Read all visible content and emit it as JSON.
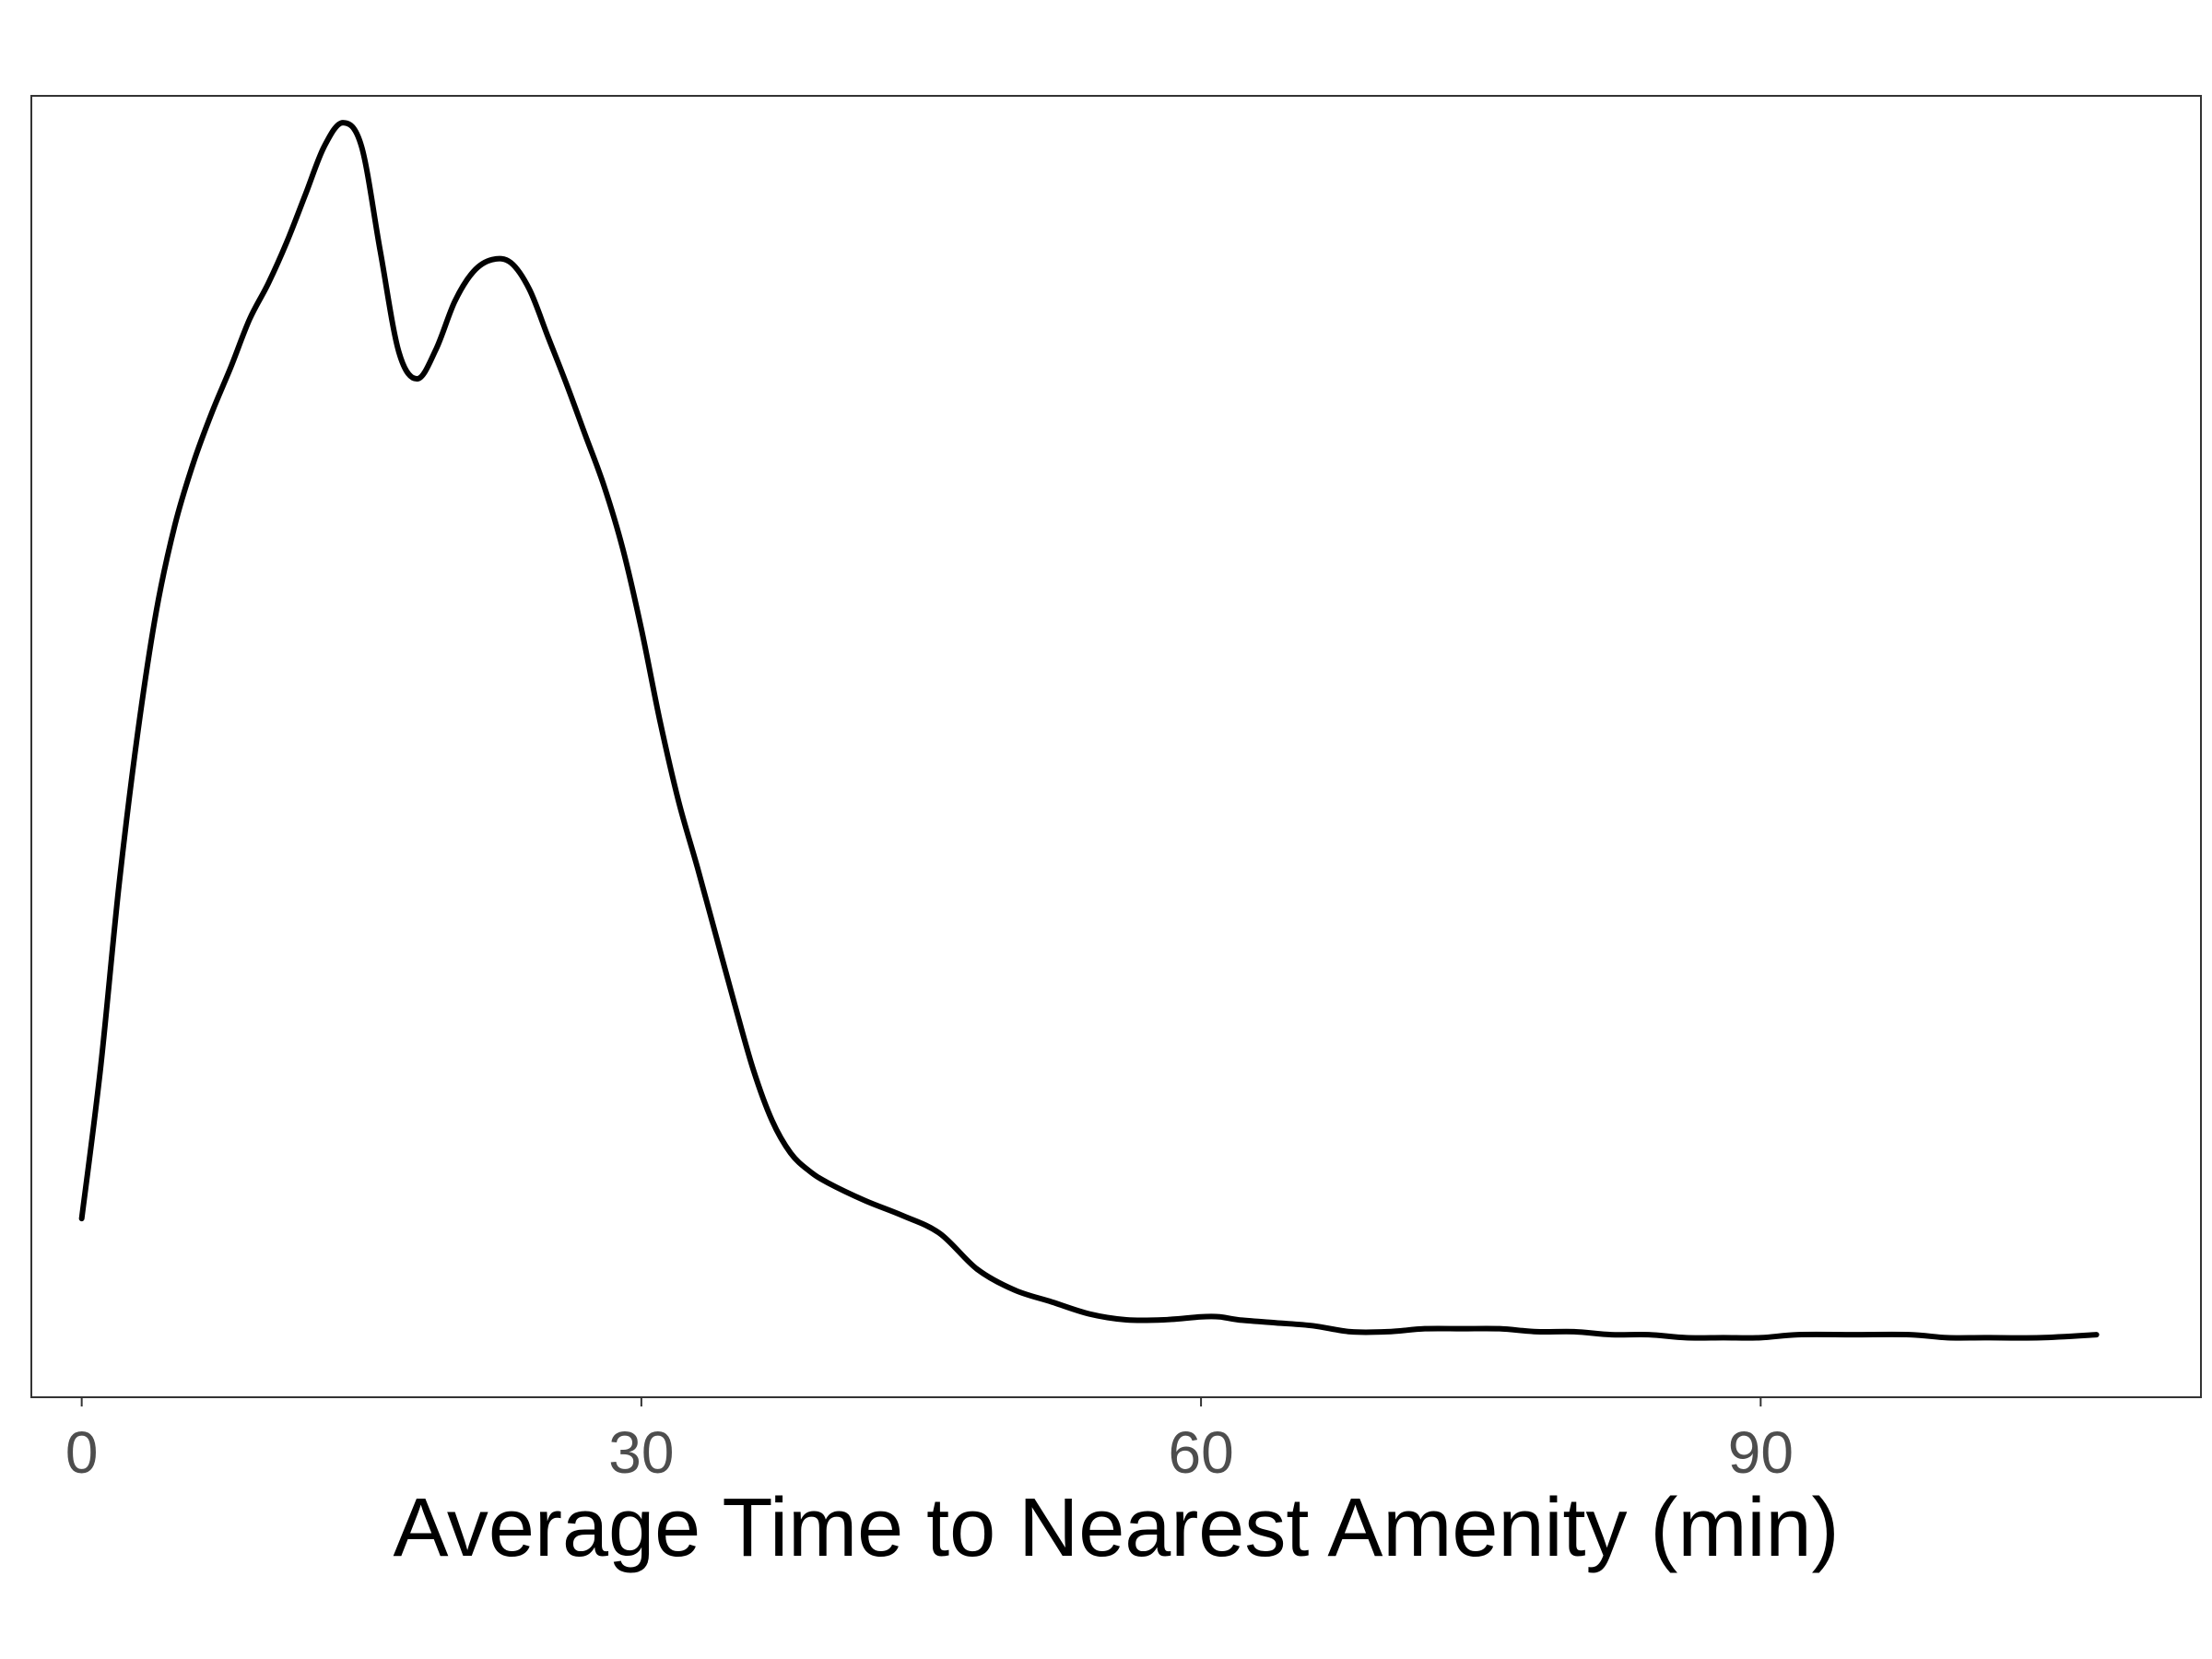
{
  "chart_data": {
    "type": "line",
    "title": "",
    "xlabel": "Average Time to Nearest Amenity (min)",
    "ylabel": "",
    "xlim": [
      -2.7,
      113.6
    ],
    "ylim": [
      -0.001,
      0.0427
    ],
    "x_ticks": [
      0,
      30,
      60,
      90
    ],
    "x_tick_labels": [
      "0",
      "30",
      "60",
      "90"
    ],
    "y_ticks": [],
    "grid": false,
    "legend": "none",
    "line_color": "#000000",
    "series": [
      {
        "x": [
          0,
          1,
          2,
          3,
          4,
          5,
          6,
          7,
          8,
          9,
          10,
          11,
          12,
          13,
          14,
          15,
          16,
          17,
          18,
          19,
          20,
          21,
          22,
          23,
          24,
          25,
          26,
          27,
          28,
          29,
          30,
          31,
          32,
          33,
          34,
          35,
          36,
          37,
          38,
          39,
          40,
          42,
          44,
          46,
          48,
          50,
          52,
          54,
          56,
          58,
          60,
          61,
          62,
          64,
          66,
          68,
          70,
          72,
          74,
          76,
          78,
          80,
          82,
          84,
          86,
          88,
          90,
          92,
          95,
          98,
          100,
          102,
          105,
          108
        ],
        "y": [
          0.005,
          0.01,
          0.0162,
          0.0213,
          0.0254,
          0.0283,
          0.0304,
          0.0321,
          0.0336,
          0.0352,
          0.0364,
          0.0378,
          0.0394,
          0.041,
          0.0418,
          0.041,
          0.0375,
          0.0341,
          0.0332,
          0.0342,
          0.0358,
          0.0368,
          0.0372,
          0.0371,
          0.0362,
          0.0346,
          0.033,
          0.0313,
          0.0296,
          0.0275,
          0.0248,
          0.0217,
          0.019,
          0.0168,
          0.0145,
          0.0122,
          0.01,
          0.0083,
          0.0072,
          0.0066,
          0.0062,
          0.0056,
          0.0051,
          0.0045,
          0.0033,
          0.0026,
          0.0022,
          0.0018,
          0.0016,
          0.0016,
          0.0017,
          0.0017,
          0.0016,
          0.0015,
          0.0014,
          0.0012,
          0.0012,
          0.0013,
          0.0013,
          0.0013,
          0.0012,
          0.0012,
          0.0011,
          0.0011,
          0.001,
          0.001,
          0.001,
          0.0011,
          0.0011,
          0.0011,
          0.001,
          0.001,
          0.001,
          0.0011
        ]
      }
    ]
  }
}
